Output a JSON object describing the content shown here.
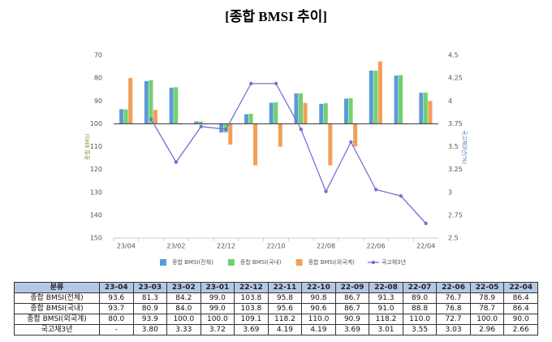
{
  "chart_data": {
    "type": "bar_line",
    "title": "[종합 BMSI 추이]",
    "ylabel": "종합 BMSI",
    "y2label": "국고채3년(%)",
    "categories": [
      "23/04",
      null,
      "23/02",
      null,
      "22/12",
      null,
      "22/10",
      null,
      "22/08",
      null,
      "22/06",
      null,
      "22/04"
    ],
    "ylim": [
      150,
      70
    ],
    "yticks": [
      70,
      80,
      90,
      100,
      110,
      120,
      130,
      140,
      150
    ],
    "baseline": 100,
    "y2lim": [
      2.5,
      4.5
    ],
    "y2ticks": [
      2.5,
      2.75,
      3,
      3.25,
      3.5,
      3.75,
      4,
      4.25,
      4.5
    ],
    "grid": false,
    "legend": "bottom",
    "series": [
      {
        "name": "종합 BMSI(전체)",
        "color": "#5b9bd5",
        "type": "bar",
        "values": [
          93.6,
          81.3,
          84.2,
          99.0,
          103.8,
          95.8,
          90.8,
          86.7,
          91.3,
          89.0,
          76.7,
          78.9,
          86.4
        ]
      },
      {
        "name": "종합 BMSI(국내)",
        "color": "#70d16e",
        "type": "bar",
        "values": [
          93.7,
          80.9,
          84.0,
          99.0,
          103.8,
          95.6,
          90.6,
          86.7,
          91.0,
          88.8,
          76.8,
          78.7,
          86.4
        ]
      },
      {
        "name": "종합 BMSI(외국계)",
        "color": "#f0a05a",
        "type": "bar",
        "values": [
          80.0,
          93.9,
          100.0,
          100.0,
          109.1,
          118.2,
          110.0,
          90.9,
          118.2,
          110.0,
          72.7,
          100.0,
          90.0
        ]
      },
      {
        "name": "국고채3년",
        "color": "#7472d4",
        "type": "line",
        "axis": "y2",
        "values": [
          null,
          3.8,
          3.33,
          3.72,
          3.69,
          4.19,
          4.19,
          3.69,
          3.01,
          3.55,
          3.03,
          2.96,
          2.66
        ]
      }
    ]
  },
  "table": {
    "header": [
      "분류",
      "23-04",
      "23-03",
      "23-02",
      "23-01",
      "22-12",
      "22-11",
      "22-10",
      "22-09",
      "22-08",
      "22-07",
      "22-06",
      "22-05",
      "22-04"
    ],
    "rows": [
      [
        "종합 BMSI(전체)",
        "93.6",
        "81.3",
        "84.2",
        "99.0",
        "103.8",
        "95.8",
        "90.8",
        "86.7",
        "91.3",
        "89.0",
        "76.7",
        "78.9",
        "86.4"
      ],
      [
        "종합 BMSI(국내)",
        "93.7",
        "80.9",
        "84.0",
        "99.0",
        "103.8",
        "95.6",
        "90.6",
        "86.7",
        "91.0",
        "88.8",
        "76.8",
        "78.7",
        "86.4"
      ],
      [
        "종합 BMSI(외국계)",
        "80.0",
        "93.9",
        "100.0",
        "100.0",
        "109.1",
        "118.2",
        "110.0",
        "90.9",
        "118.2",
        "110.0",
        "72.7",
        "100.0",
        "90.0"
      ],
      [
        "국고채3년",
        "-",
        "3.80",
        "3.33",
        "3.72",
        "3.69",
        "4.19",
        "4.19",
        "3.69",
        "3.01",
        "3.55",
        "3.03",
        "2.96",
        "2.66"
      ]
    ]
  }
}
